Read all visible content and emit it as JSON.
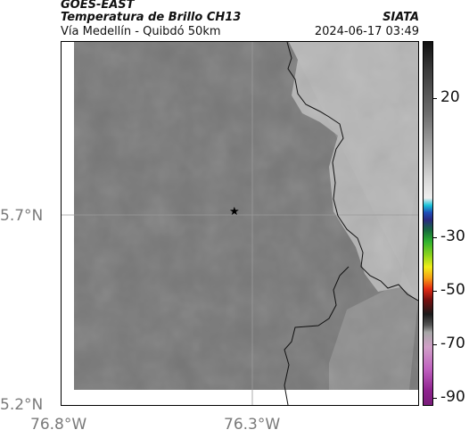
{
  "header": {
    "satellite": "GOES-EAST",
    "product": "Temperatura de Brillo CH13",
    "region": "Vía Medellín - Quibdó 50km",
    "org": "SIATA",
    "timestamp": "2024-06-17 03:49"
  },
  "axes": {
    "y_ticks": [
      "5.7°N",
      "5.2°N"
    ],
    "x_ticks": [
      "76.8°W",
      "76.3°W"
    ]
  },
  "colorbar": {
    "ticks": [
      "20",
      "-30",
      "-50",
      "-70",
      "-90"
    ]
  },
  "marker": {
    "icon": "star-icon",
    "symbol": "★"
  },
  "colors": {
    "map_base": "#777777",
    "highlands": "#b7b7b7",
    "grid": "#9a9a9a"
  }
}
